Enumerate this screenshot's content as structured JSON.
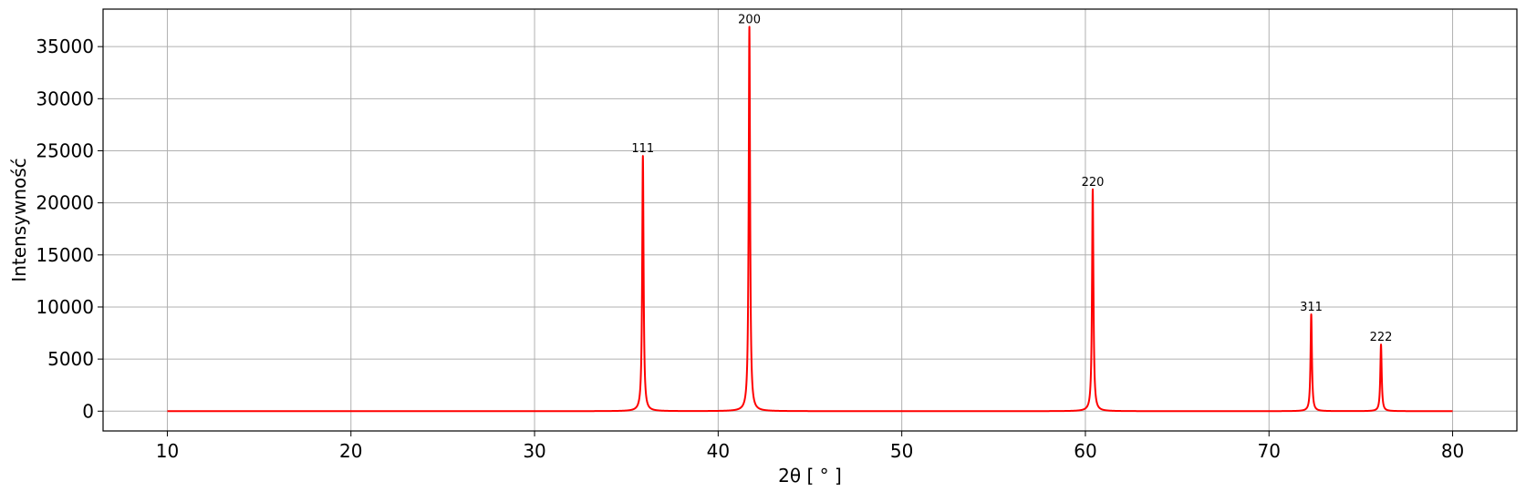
{
  "chart_data": {
    "type": "line",
    "xlabel": "2θ [ ° ]",
    "ylabel": "Intensywność",
    "xlim": [
      6.5,
      83.5
    ],
    "ylim": [
      -1900,
      38600
    ],
    "grid": true,
    "x_ticks": [
      10,
      20,
      30,
      40,
      50,
      60,
      70,
      80
    ],
    "y_ticks": [
      0,
      5000,
      10000,
      15000,
      20000,
      25000,
      30000,
      35000
    ],
    "series": [
      {
        "color": "#ff0000",
        "x_range": [
          10,
          80
        ],
        "baseline": 0,
        "peaks": [
          {
            "label": "111",
            "x": 35.9,
            "y": 24500
          },
          {
            "label": "200",
            "x": 41.7,
            "y": 36900
          },
          {
            "label": "220",
            "x": 60.4,
            "y": 21300
          },
          {
            "label": "311",
            "x": 72.3,
            "y": 9300
          },
          {
            "label": "222",
            "x": 76.1,
            "y": 6400
          }
        ]
      }
    ]
  }
}
